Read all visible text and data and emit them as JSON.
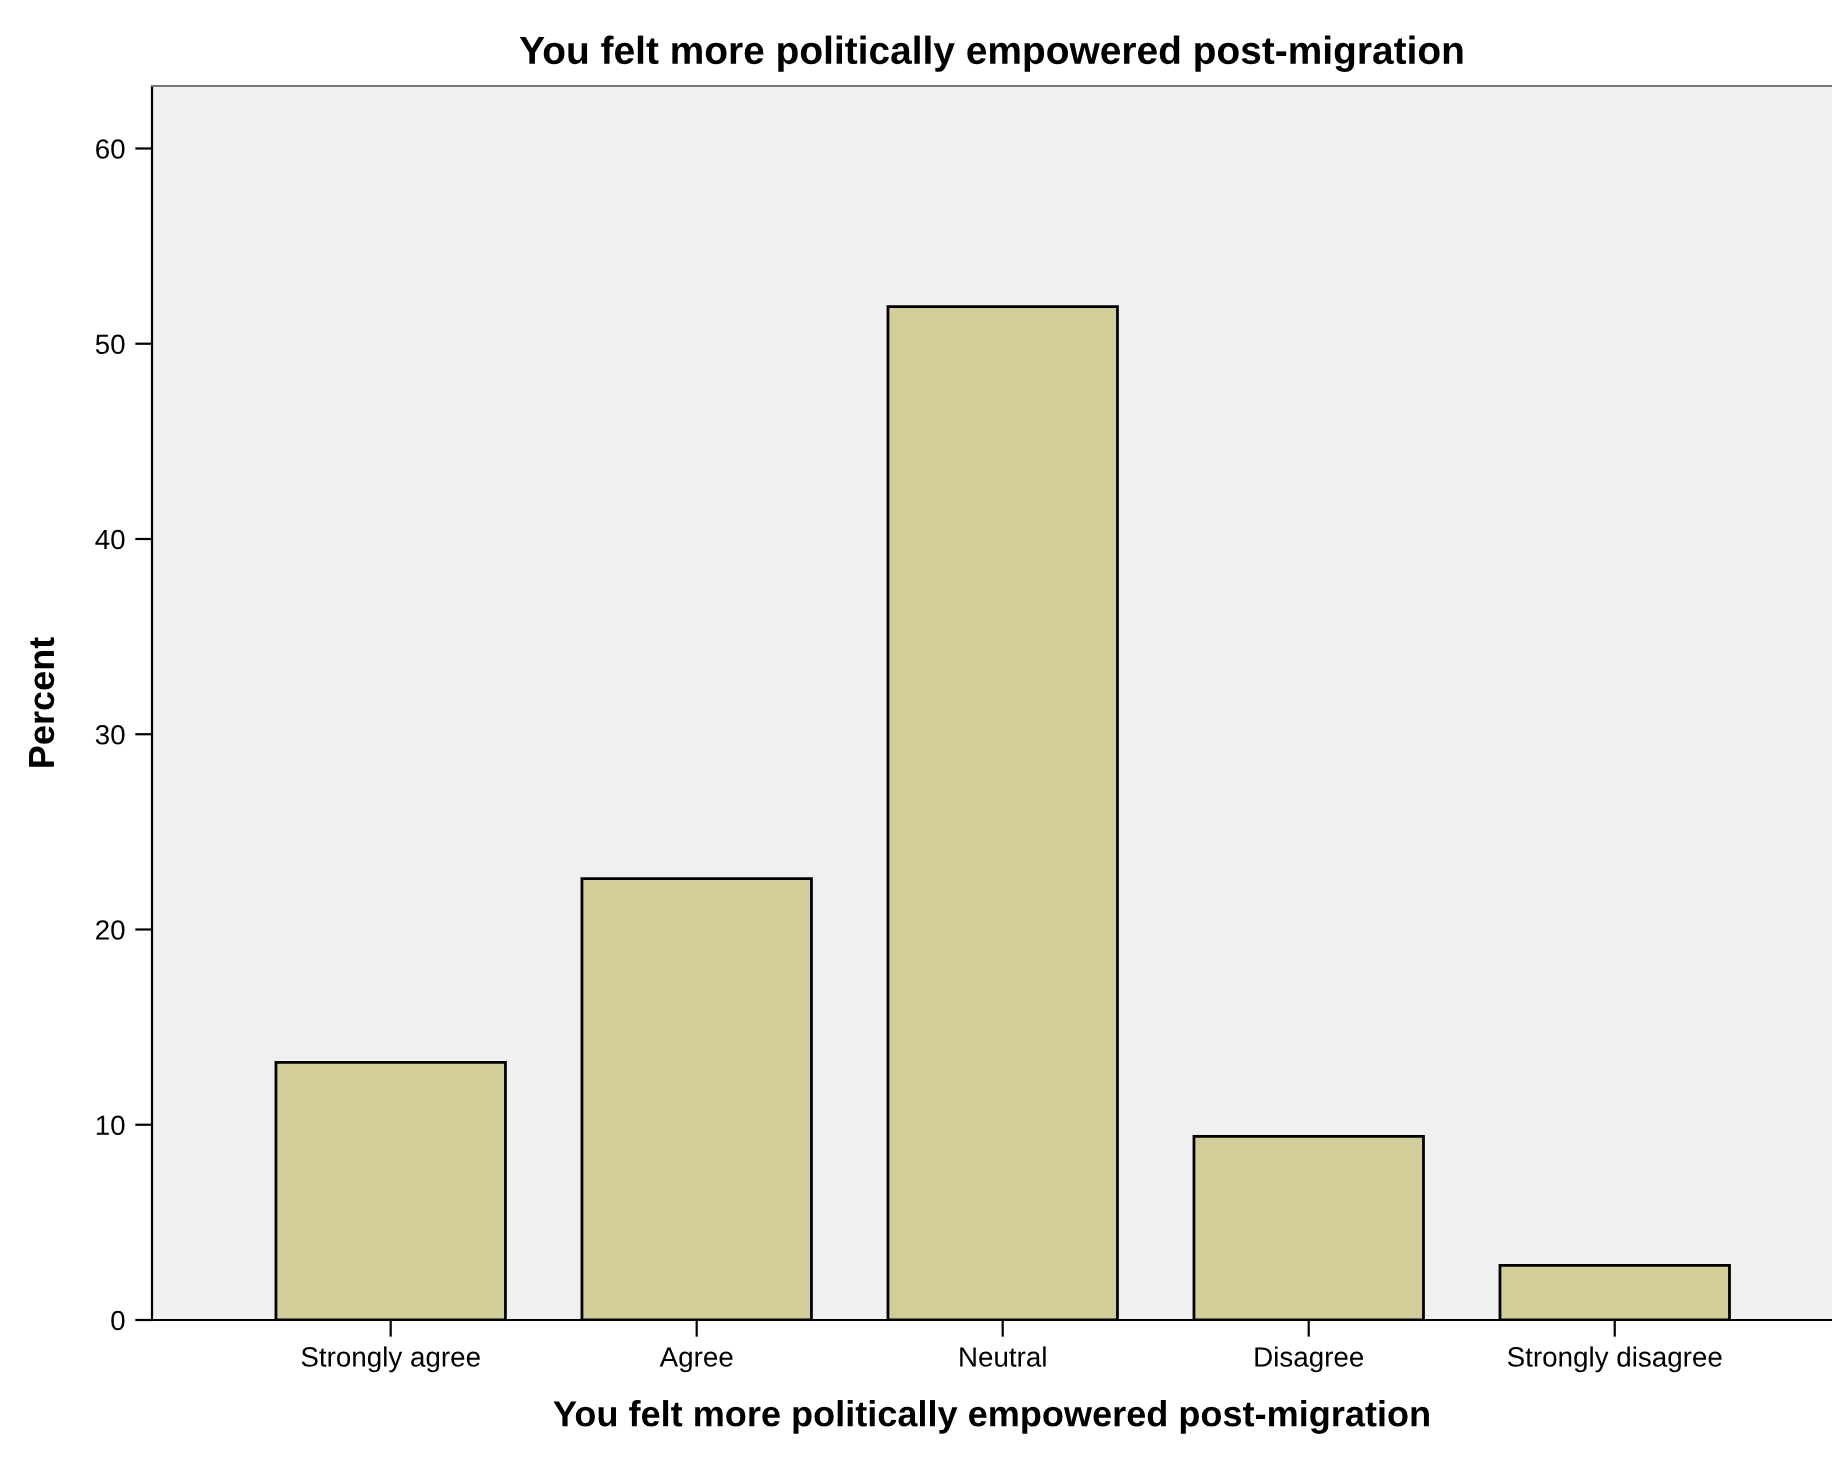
{
  "chart_data": {
    "type": "bar",
    "title": "You felt more politically empowered post-migration",
    "xlabel": "You felt more politically empowered post-migration",
    "ylabel": "Percent",
    "categories": [
      "Strongly agree",
      "Agree",
      "Neutral",
      "Disagree",
      "Strongly disagree"
    ],
    "values": [
      13.2,
      22.6,
      51.9,
      9.4,
      2.8
    ],
    "color": "#d3cd97",
    "ylim": [
      0,
      63.2
    ],
    "yticks": [
      0,
      10,
      20,
      30,
      40,
      50,
      60
    ],
    "grid": false,
    "legend": false
  }
}
